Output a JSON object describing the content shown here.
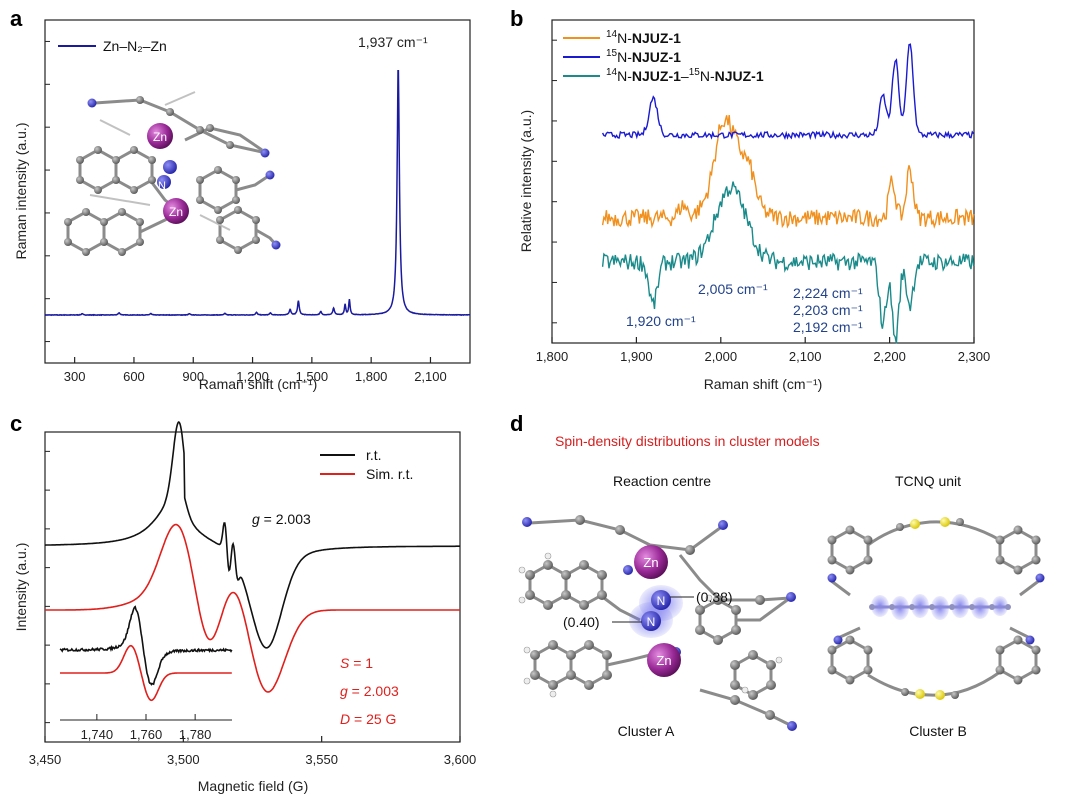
{
  "panel_labels": {
    "a": "a",
    "b": "b",
    "c": "c",
    "d": "d"
  },
  "chart_data": [
    {
      "id": "a",
      "type": "line",
      "xlabel": "Raman shift (cm⁻¹)",
      "ylabel": "Raman intensity (a.u.)",
      "xlim": [
        150,
        2300
      ],
      "ylim": [
        0,
        100
      ],
      "xticks": [
        300,
        600,
        900,
        1200,
        1500,
        1800,
        2100
      ],
      "xtick_labels": [
        "300",
        "600",
        "900",
        "1,200",
        "1,500",
        "1,800",
        "2,100"
      ],
      "baseline": 1.5,
      "peaks": [
        [
          338,
          0.5,
          5
        ],
        [
          525,
          0.8,
          6
        ],
        [
          685,
          0.6,
          5
        ],
        [
          880,
          0.5,
          5
        ],
        [
          1060,
          0.6,
          5
        ],
        [
          1220,
          1.0,
          5
        ],
        [
          1290,
          0.8,
          5
        ],
        [
          1390,
          2.2,
          5
        ],
        [
          1432,
          5.5,
          5
        ],
        [
          1545,
          1.3,
          5
        ],
        [
          1610,
          2.6,
          5
        ],
        [
          1668,
          4.0,
          4
        ],
        [
          1690,
          6.0,
          4
        ],
        [
          1937,
          97.0,
          7
        ]
      ],
      "series": [
        {
          "name": "Zn–N₂–Zn",
          "color": "#1a1aa0"
        }
      ],
      "legend_text": "Zn–N₂–Zn",
      "peak_label": "1,937 cm⁻¹",
      "inset": "Zn–N₂–Zn cluster structure",
      "atom_labels": [
        "Zn",
        "N",
        "N",
        "Zn"
      ]
    },
    {
      "id": "b",
      "type": "line",
      "xlabel": "Raman shift (cm⁻¹)",
      "ylabel": "Relative intensity (a.u.)",
      "xlim": [
        1800,
        2300
      ],
      "xticks": [
        1800,
        1900,
        2000,
        2100,
        2200,
        2300
      ],
      "xtick_labels": [
        "1,800",
        "1,900",
        "2,000",
        "2,100",
        "2,200",
        "2,300"
      ],
      "series": [
        {
          "name": "14N-NJUZ-1",
          "sup": "14",
          "label": "N-",
          "bold": "NJUZ-1",
          "color": "#f0901e",
          "offset": 0.5,
          "peaks": [
            [
              2012,
              1.0,
              18
            ],
            [
              2001,
              0.35,
              8
            ],
            [
              2203,
              0.45,
              4
            ],
            [
              2224,
              0.62,
              4
            ],
            [
              1955,
              0.15,
              5
            ],
            [
              2035,
              0.2,
              6
            ]
          ]
        },
        {
          "name": "15N-NJUZ-1",
          "sup": "15",
          "label": "N-",
          "bold": "NJUZ-1",
          "color": "#1a1ad0",
          "offset": 0.0,
          "peaks": [
            [
              1920,
              0.42,
              5
            ],
            [
              2192,
              0.45,
              4
            ],
            [
              2207,
              0.85,
              4
            ],
            [
              2224,
              1.05,
              4
            ]
          ]
        },
        {
          "name": "14N-NJUZ-1–15N-NJUZ-1",
          "sup1": "14",
          "label1": "N-",
          "bold1": "NJUZ-1",
          "dash": "–",
          "sup2": "15",
          "label2": "N-",
          "bold2": "NJUZ-1",
          "color": "#1a8a8a",
          "offset": 0.0,
          "peaks": [
            [
              2012,
              0.95,
              18
            ],
            [
              1920,
              -0.55,
              5
            ],
            [
              2192,
              -0.8,
              4
            ],
            [
              2207,
              -1.0,
              4
            ],
            [
              2224,
              -0.55,
              4
            ]
          ]
        }
      ],
      "annotations": [
        "2,005 cm⁻¹",
        "1,920 cm⁻¹",
        "2,224 cm⁻¹",
        "2,203 cm⁻¹",
        "2,192 cm⁻¹"
      ]
    },
    {
      "id": "c",
      "type": "line",
      "xlabel": "Magnetic field (G)",
      "ylabel": "Intensity (a.u.)",
      "xlim": [
        3450,
        3600
      ],
      "xticks": [
        3450,
        3500,
        3550,
        3600
      ],
      "xtick_labels": [
        "3,450",
        "3,500",
        "3,550",
        "3,600"
      ],
      "series": [
        {
          "name": "r.t.",
          "color": "#111111"
        },
        {
          "name": "Sim. r.t.",
          "color": "#e0201c"
        }
      ],
      "g_label_prefix": "g",
      "g_label_value": " = 2.003",
      "sim_params": [
        {
          "symbol": "S",
          "value": " = 1"
        },
        {
          "symbol": "g",
          "value": " = 2.003"
        },
        {
          "symbol": "D",
          "value": " = 25 G"
        }
      ],
      "inset": {
        "xlim": [
          1725,
          1795
        ],
        "xticks": [
          1740,
          1760,
          1780
        ],
        "xtick_labels": [
          "1,740",
          "1,760",
          "1,780"
        ]
      }
    }
  ],
  "panel_d": {
    "title": "Spin-density distributions in cluster models",
    "title_color": "#d41f1f",
    "left_header": "Reaction centre",
    "right_header": "TCNQ unit",
    "left_caption": "Cluster A",
    "right_caption": "Cluster B",
    "atom_labels": [
      "Zn",
      "N",
      "N",
      "Zn"
    ],
    "spin_values": [
      "(0.38)",
      "(0.40)"
    ]
  }
}
